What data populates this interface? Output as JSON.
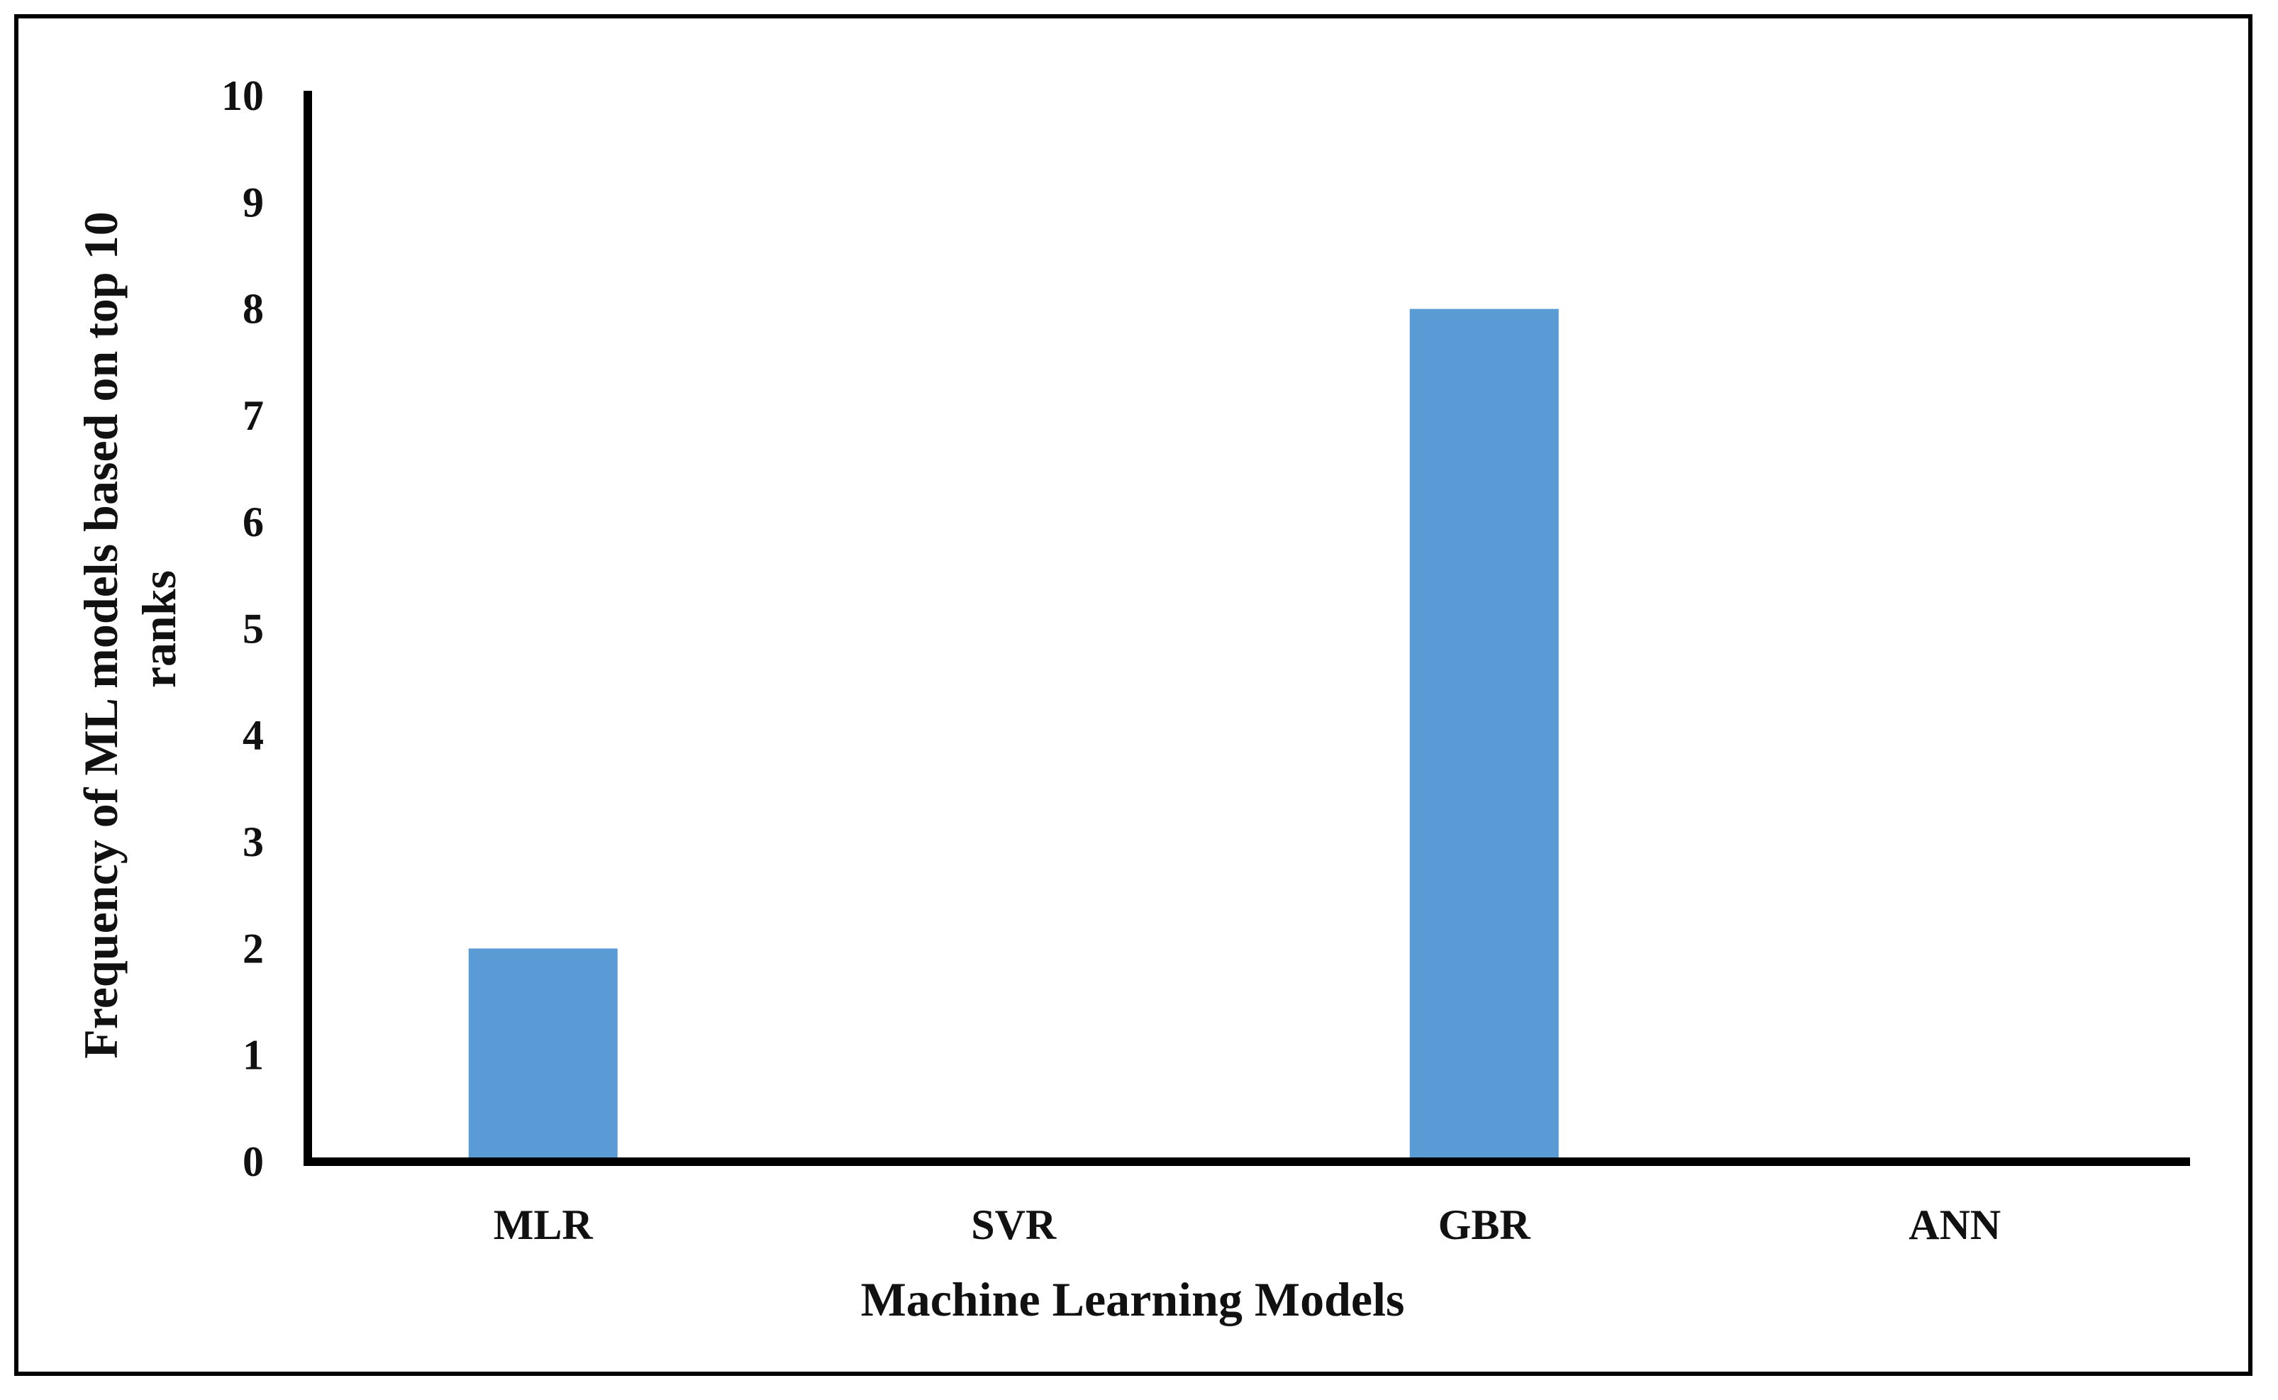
{
  "chart_data": {
    "type": "bar",
    "categories": [
      "MLR",
      "SVR",
      "GBR",
      "ANN"
    ],
    "values": [
      2,
      0,
      8,
      0
    ],
    "title": "",
    "xlabel": "Machine Learning Models",
    "ylabel": [
      "Frequency of ML models based on top 10",
      "ranks"
    ],
    "ylim": [
      0,
      10
    ],
    "yticks": [
      "0",
      "1",
      "2",
      "3",
      "4",
      "5",
      "6",
      "7",
      "8",
      "9",
      "10"
    ],
    "grid": false,
    "legend": "none",
    "bar_color": "#5b9bd5",
    "axis_color": "#000000"
  }
}
